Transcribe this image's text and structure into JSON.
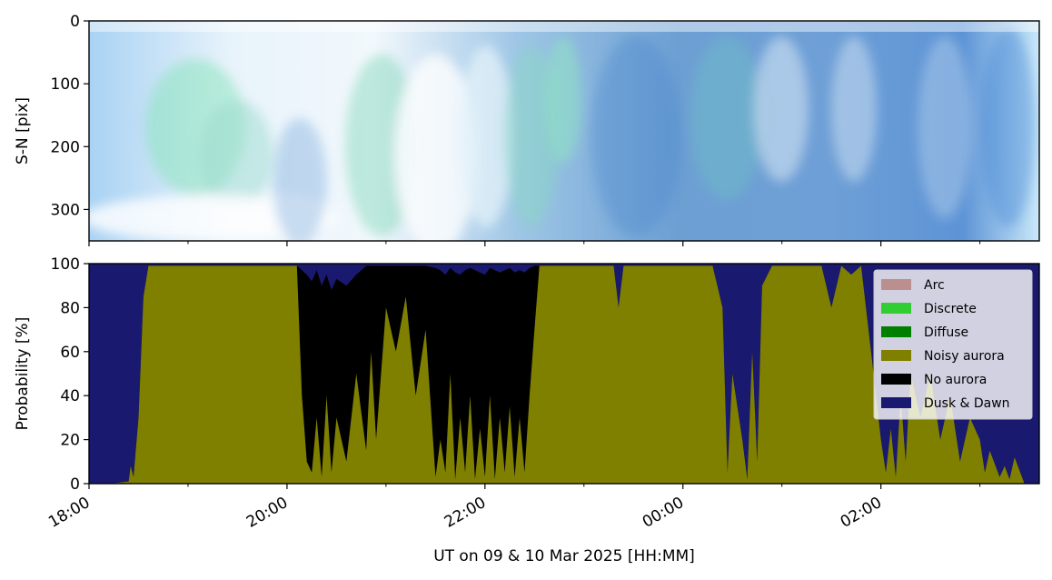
{
  "chart_data": [
    {
      "type": "heatmap",
      "panel": "keogram",
      "ylabel": "S-N [pix]",
      "ylim": [
        350,
        0
      ],
      "yticks": [
        0,
        100,
        200,
        300
      ],
      "xlim_hours": [
        18.0,
        27.6
      ],
      "colors": {
        "base_blue": "#5e95d2",
        "light_blue": "#a9d2f3",
        "aurora_green": "#7fe3b2",
        "cloud_white": "#f4f9fd"
      }
    },
    {
      "type": "area",
      "panel": "probability",
      "stacked": true,
      "ylabel": "Probability [%]",
      "ylim": [
        0,
        100
      ],
      "yticks": [
        0,
        20,
        40,
        60,
        80,
        100
      ],
      "xlabel": "UT on 09 & 10 Mar 2025 [HH:MM]",
      "xlim_hours": [
        18.0,
        27.6
      ],
      "xticks": [
        {
          "hour": 18,
          "label": "18:00"
        },
        {
          "hour": 20,
          "label": "20:00"
        },
        {
          "hour": 22,
          "label": "22:00"
        },
        {
          "hour": 24,
          "label": "00:00"
        },
        {
          "hour": 26,
          "label": "02:00"
        }
      ],
      "minor_xticks": [
        19,
        21,
        23,
        25,
        27
      ],
      "legend_position": "top-right",
      "series": [
        {
          "name": "Arc",
          "color": "#bc8f8f"
        },
        {
          "name": "Discrete",
          "color": "#32cd32"
        },
        {
          "name": "Diffuse",
          "color": "#008000"
        },
        {
          "name": "Noisy aurora",
          "color": "#808000"
        },
        {
          "name": "No aurora",
          "color": "#000000"
        },
        {
          "name": "Dusk & Dawn",
          "color": "#191970"
        }
      ],
      "x": [
        18.0,
        18.2,
        18.4,
        18.42,
        18.45,
        18.5,
        18.55,
        18.6,
        18.65,
        18.7,
        19.0,
        19.5,
        20.0,
        20.1,
        20.15,
        20.2,
        20.25,
        20.3,
        20.35,
        20.4,
        20.45,
        20.5,
        20.6,
        20.7,
        20.8,
        20.85,
        20.9,
        21.0,
        21.1,
        21.2,
        21.3,
        21.4,
        21.5,
        21.55,
        21.6,
        21.65,
        21.7,
        21.75,
        21.8,
        21.85,
        21.9,
        21.95,
        22.0,
        22.05,
        22.1,
        22.15,
        22.2,
        22.25,
        22.3,
        22.35,
        22.4,
        22.45,
        22.5,
        22.55,
        22.6,
        22.7,
        22.8,
        22.9,
        23.0,
        23.2,
        23.3,
        23.35,
        23.4,
        23.5,
        23.7,
        24.0,
        24.3,
        24.4,
        24.45,
        24.5,
        24.6,
        24.65,
        24.7,
        24.75,
        24.8,
        24.9,
        25.0,
        25.2,
        25.4,
        25.5,
        25.6,
        25.7,
        25.8,
        25.9,
        26.0,
        26.05,
        26.1,
        26.15,
        26.2,
        26.25,
        26.3,
        26.4,
        26.5,
        26.6,
        26.7,
        26.8,
        26.9,
        27.0,
        27.05,
        27.1,
        27.2,
        27.25,
        27.3,
        27.35,
        27.45,
        27.6
      ],
      "noisy_aurora_cum": [
        0,
        0,
        1,
        8,
        3,
        30,
        85,
        99,
        99,
        99,
        99,
        99,
        99,
        99,
        40,
        10,
        5,
        30,
        3,
        40,
        5,
        30,
        10,
        50,
        15,
        60,
        20,
        80,
        60,
        85,
        40,
        70,
        3,
        20,
        5,
        50,
        2,
        30,
        5,
        40,
        2,
        25,
        3,
        40,
        2,
        30,
        5,
        35,
        3,
        30,
        5,
        40,
        70,
        99,
        99,
        99,
        99,
        99,
        99,
        99,
        99,
        80,
        99,
        99,
        99,
        99,
        99,
        80,
        5,
        50,
        20,
        2,
        60,
        10,
        90,
        99,
        99,
        99,
        99,
        80,
        99,
        95,
        99,
        60,
        20,
        5,
        25,
        3,
        40,
        10,
        50,
        30,
        50,
        20,
        40,
        10,
        30,
        20,
        5,
        15,
        3,
        8,
        2,
        12,
        0,
        0
      ],
      "no_aurora_cum": [
        0,
        0,
        1,
        8,
        3,
        30,
        85,
        99,
        99,
        99,
        99,
        99,
        99,
        99,
        97,
        95,
        92,
        97,
        90,
        95,
        88,
        93,
        90,
        95,
        99,
        99,
        99,
        99,
        99,
        99,
        99,
        99,
        98,
        97,
        95,
        98,
        96,
        95,
        97,
        98,
        97,
        96,
        95,
        98,
        97,
        96,
        97,
        98,
        96,
        97,
        96,
        98,
        99,
        99,
        99,
        99,
        99,
        99,
        99,
        99,
        99,
        80,
        99,
        99,
        99,
        99,
        99,
        80,
        5,
        50,
        20,
        2,
        60,
        10,
        90,
        99,
        99,
        99,
        99,
        80,
        99,
        95,
        99,
        60,
        20,
        5,
        25,
        3,
        40,
        10,
        50,
        30,
        50,
        20,
        40,
        10,
        30,
        20,
        5,
        15,
        3,
        8,
        2,
        12,
        0,
        0
      ]
    }
  ]
}
